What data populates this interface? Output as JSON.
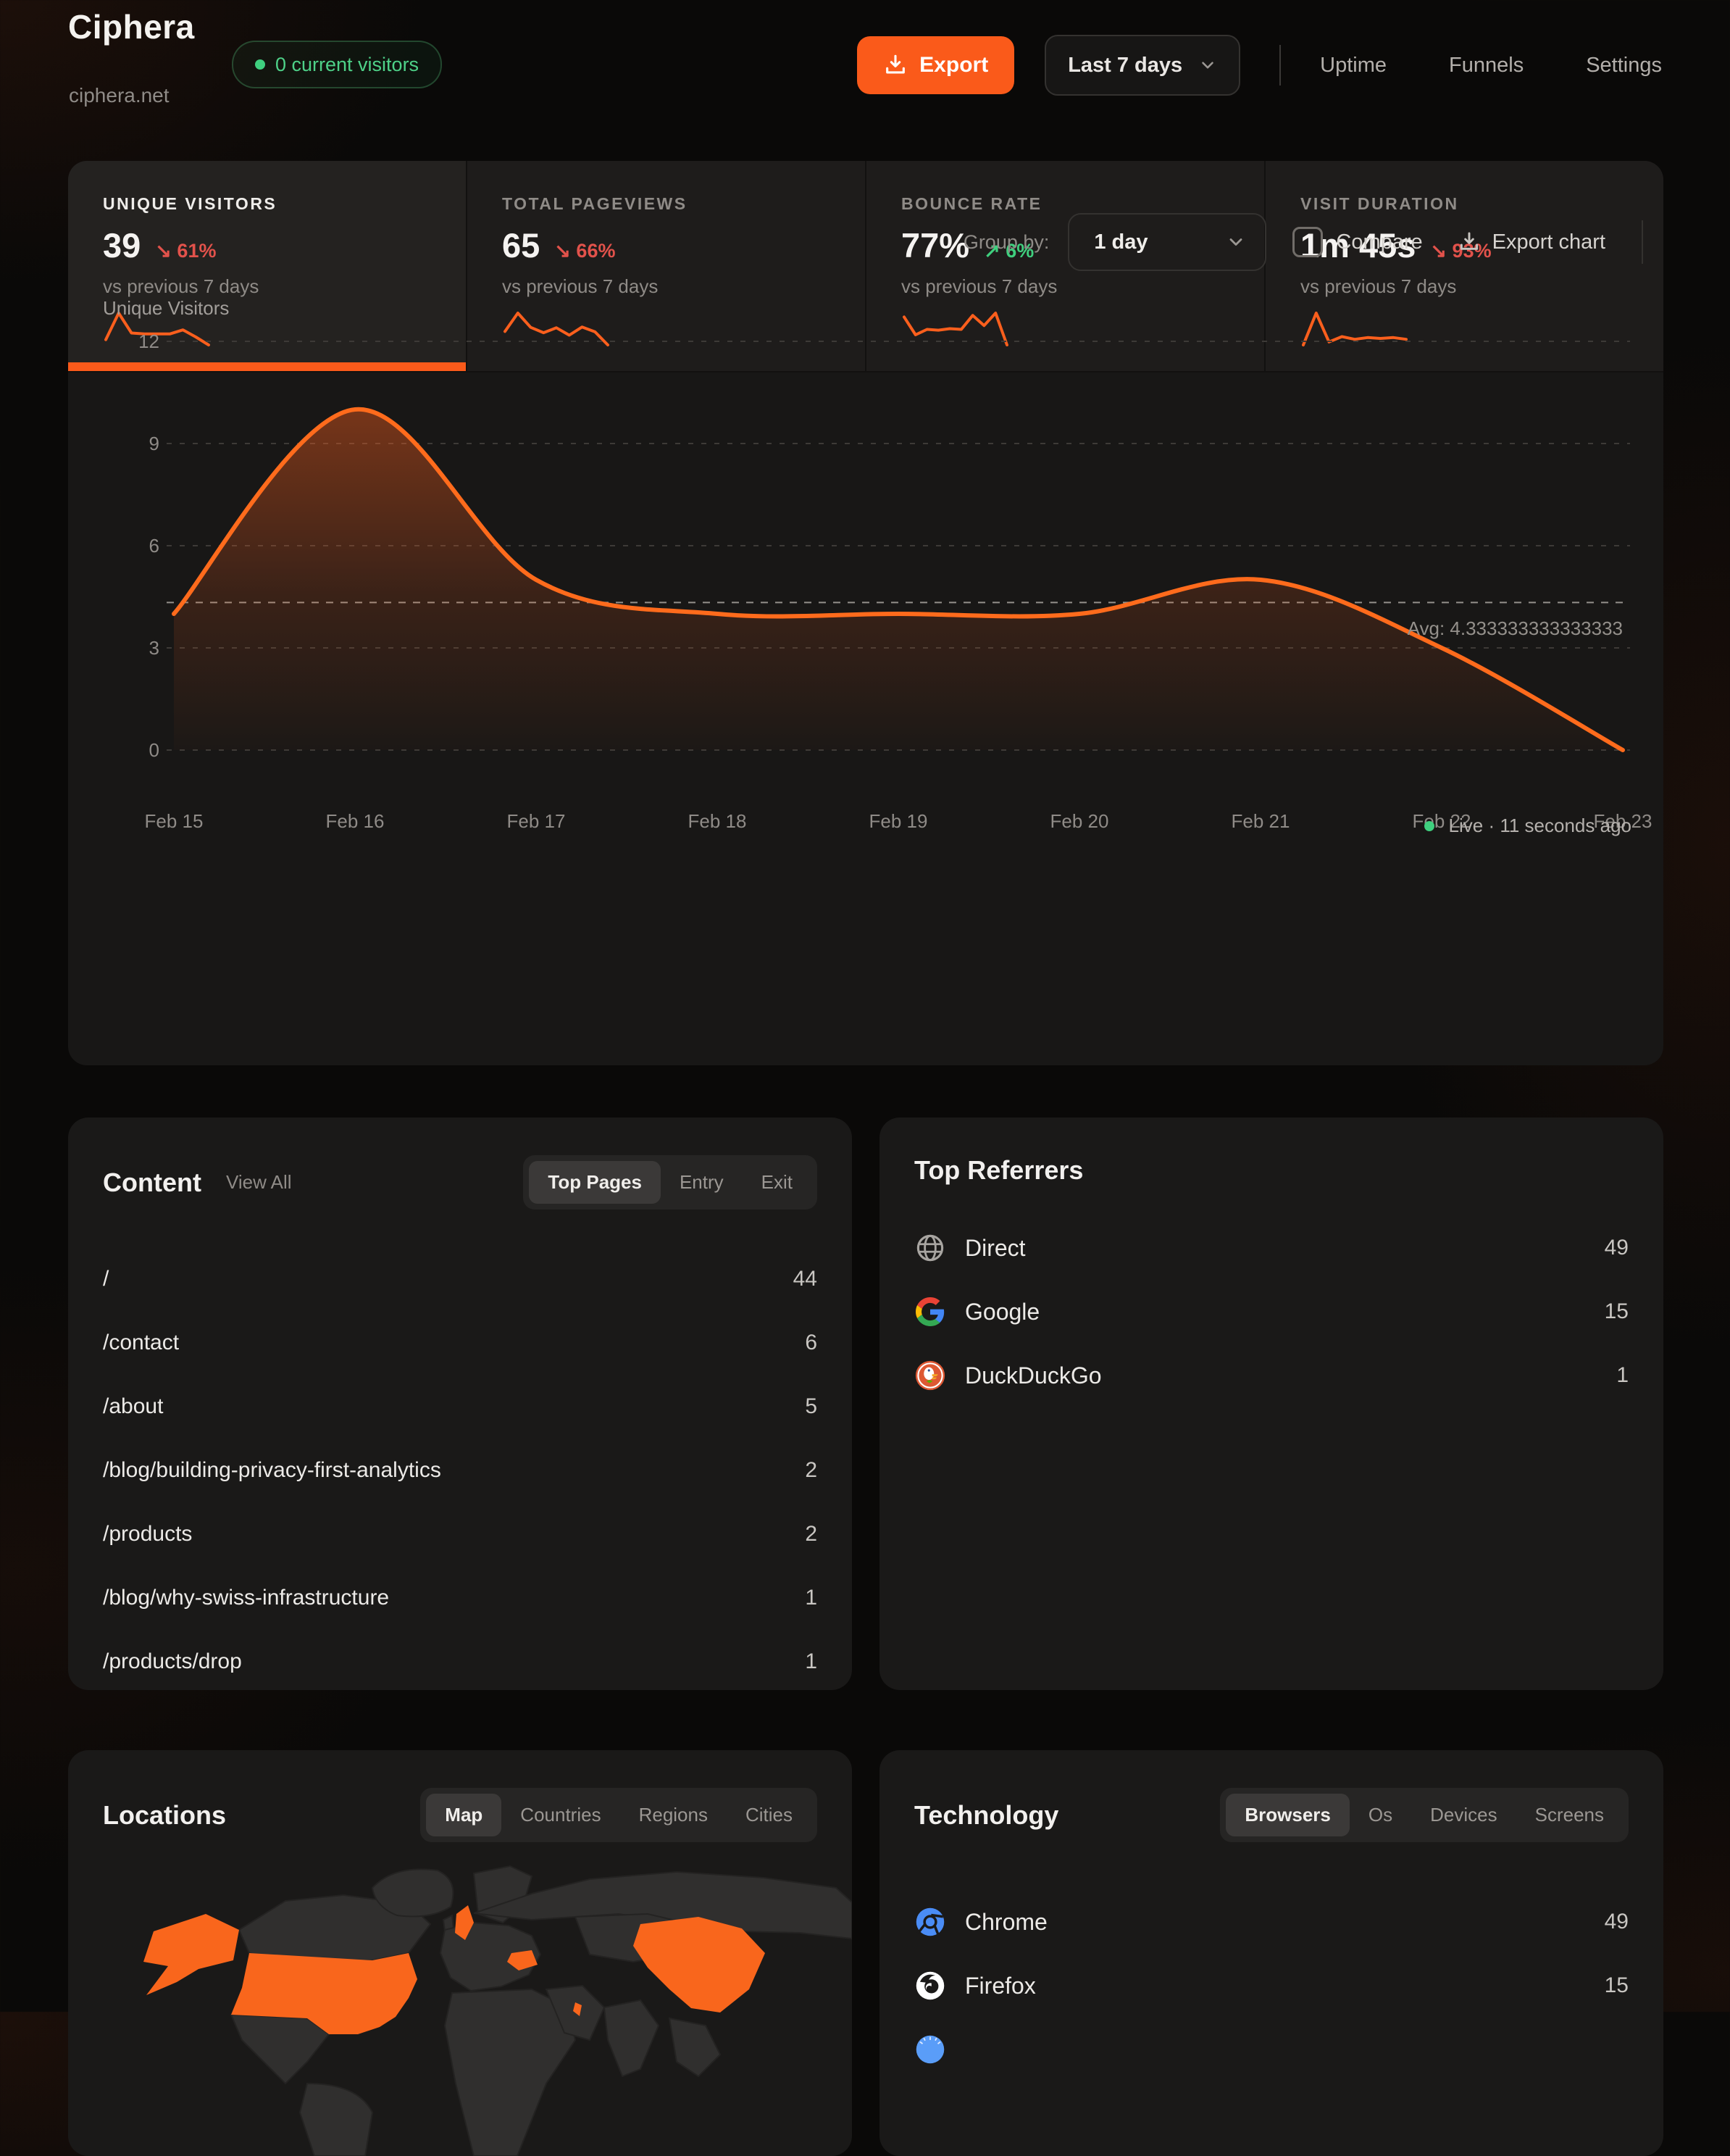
{
  "header": {
    "site_name": "Ciphera",
    "domain": "ciphera.net",
    "live_badge": "0 current visitors",
    "export_button": "Export",
    "date_range": "Last 7 days",
    "nav": [
      "Uptime",
      "Funnels",
      "Settings"
    ]
  },
  "stats": {
    "compare": "vs previous 7 days",
    "cards": [
      {
        "label": "UNIQUE VISITORS",
        "value": "39",
        "arrow": "↘",
        "delta": "61%",
        "direction": "down",
        "spark": [
          3,
          9,
          4.5,
          4.3,
          4.3,
          4.3,
          5.2,
          3.6,
          1.8
        ]
      },
      {
        "label": "TOTAL PAGEVIEWS",
        "value": "65",
        "arrow": "↘",
        "delta": "66%",
        "direction": "down",
        "spark": [
          4.5,
          9,
          5.5,
          4.2,
          5.4,
          3.6,
          5.6,
          4.4,
          1.2
        ]
      },
      {
        "label": "BOUNCE RATE",
        "value": "77%",
        "arrow": "↗",
        "delta": "6%",
        "direction": "up",
        "spark": [
          7.8,
          3.2,
          4.6,
          4.4,
          4.8,
          4.6,
          8.2,
          5.6,
          8.8,
          0.6
        ]
      },
      {
        "label": "VISIT DURATION",
        "value": "1m 45s",
        "arrow": "↘",
        "delta": "93%",
        "direction": "down",
        "spark": [
          1.5,
          8.8,
          2.2,
          3.4,
          2.8,
          3.2,
          3.0,
          3.2,
          2.8
        ]
      }
    ]
  },
  "chart": {
    "group_by_label": "Group by:",
    "group_by_value": "1 day",
    "compare_label": "Compare",
    "export_label": "Export chart",
    "avg_label": "Avg: 4.333333333333333",
    "live_status": "Live · 11 seconds ago",
    "chart_data": {
      "type": "area",
      "title": "Unique Visitors",
      "x": [
        "Feb 15",
        "Feb 16",
        "Feb 17",
        "Feb 18",
        "Feb 19",
        "Feb 20",
        "Feb 21",
        "Feb 22",
        "Feb 23"
      ],
      "values": [
        4,
        10,
        5,
        4,
        4,
        4,
        5,
        3,
        0
      ],
      "avg": 4.333333333333333,
      "ylim": [
        0,
        12
      ],
      "yticks": [
        0,
        3,
        6,
        9,
        12
      ],
      "grid": true,
      "legend": "none"
    }
  },
  "content": {
    "title": "Content",
    "view_all": "View All",
    "tabs": [
      "Top Pages",
      "Entry",
      "Exit"
    ],
    "active_tab": "Top Pages",
    "rows": [
      {
        "path": "/",
        "count": "44"
      },
      {
        "path": "/contact",
        "count": "6"
      },
      {
        "path": "/about",
        "count": "5"
      },
      {
        "path": "/blog/building-privacy-first-analytics",
        "count": "2"
      },
      {
        "path": "/products",
        "count": "2"
      },
      {
        "path": "/blog/why-swiss-infrastructure",
        "count": "1"
      },
      {
        "path": "/products/drop",
        "count": "1"
      }
    ]
  },
  "referrers": {
    "title": "Top Referrers",
    "rows": [
      {
        "name": "Direct",
        "count": "49",
        "icon": "globe-icon"
      },
      {
        "name": "Google",
        "count": "15",
        "icon": "google-icon"
      },
      {
        "name": "DuckDuckGo",
        "count": "1",
        "icon": "duckduckgo-icon"
      }
    ]
  },
  "locations": {
    "title": "Locations",
    "tabs": [
      "Map",
      "Countries",
      "Regions",
      "Cities"
    ],
    "active_tab": "Map",
    "highlighted_countries": [
      "United States",
      "Alaska (US)",
      "United Kingdom",
      "Romania",
      "China"
    ]
  },
  "technology": {
    "title": "Technology",
    "tabs": [
      "Browsers",
      "Os",
      "Devices",
      "Screens"
    ],
    "active_tab": "Browsers",
    "rows": [
      {
        "name": "Chrome",
        "count": "49",
        "icon": "chrome-icon"
      },
      {
        "name": "Firefox",
        "count": "15",
        "icon": "firefox-icon"
      }
    ]
  },
  "colors": {
    "accent": "#fa5a1a",
    "chart_line": "#ff6b1c",
    "positive": "#3fcf7e",
    "negative": "#e2524b",
    "grid": "#3d3a37",
    "avg_line": "#93908b"
  }
}
